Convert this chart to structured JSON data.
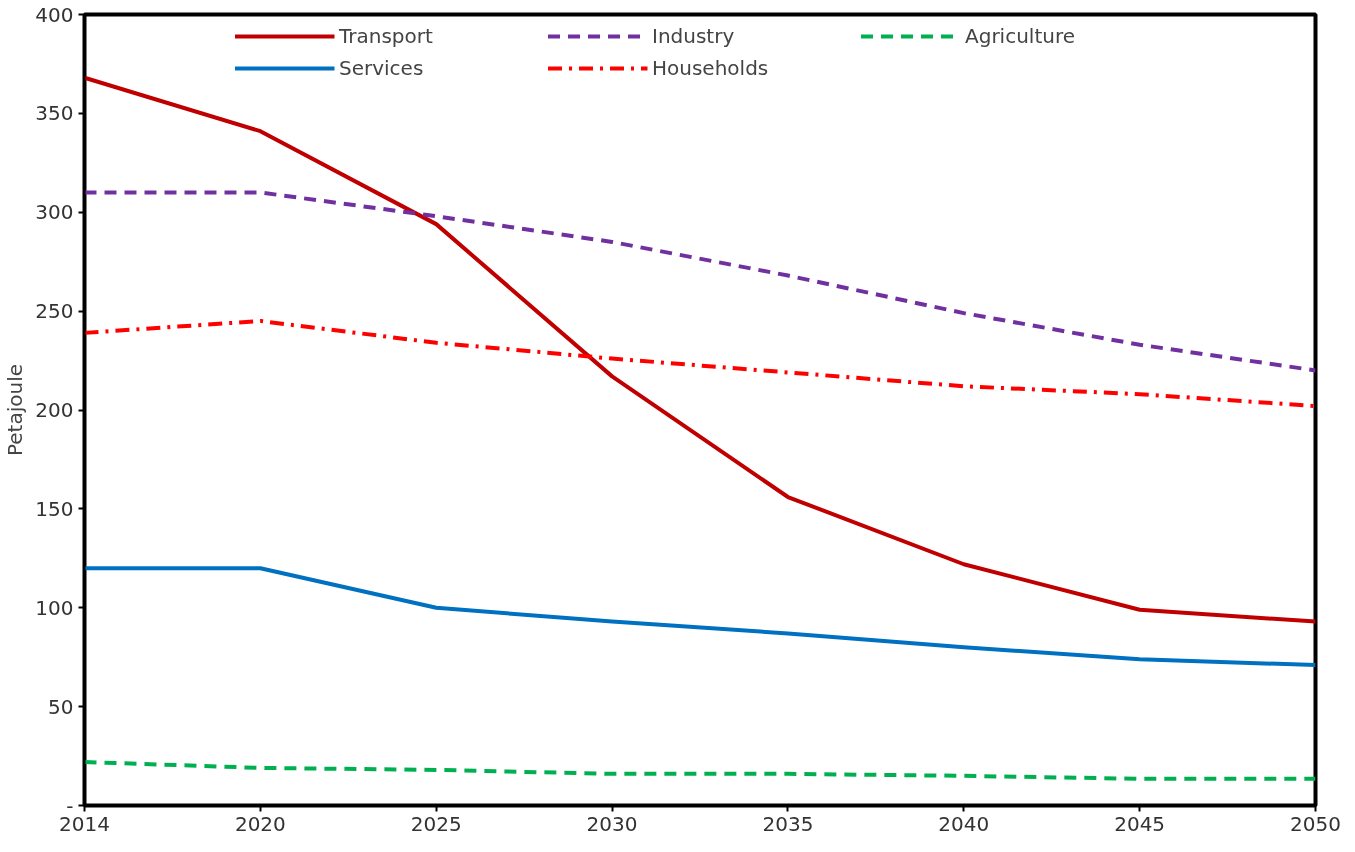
{
  "chart_data": {
    "type": "line",
    "ylabel": "Petajoule",
    "categories": [
      "2014",
      "2020",
      "2025",
      "2030",
      "2035",
      "2040",
      "2045",
      "2050"
    ],
    "ylim": [
      0,
      400
    ],
    "yticks": [
      {
        "value": 0,
        "label": "-"
      },
      50,
      100,
      150,
      200,
      250,
      300,
      350,
      400
    ],
    "grid": false,
    "legend": "top",
    "marker": "none",
    "series": [
      {
        "name": "Transport",
        "color": "#c00000",
        "line_style": "solid",
        "values": [
          368,
          341,
          294,
          217,
          156,
          122,
          99,
          93
        ]
      },
      {
        "name": "Industry",
        "color": "#7030a0",
        "line_style": "dashed",
        "values": [
          310,
          310,
          298,
          285,
          268,
          249,
          233,
          220
        ]
      },
      {
        "name": "Agriculture",
        "color": "#00b050",
        "line_style": "dashed",
        "values": [
          22,
          19,
          18,
          16,
          16,
          15,
          13.5,
          13.5
        ]
      },
      {
        "name": "Services",
        "color": "#0070c0",
        "line_style": "solid",
        "values": [
          120,
          120,
          100,
          93,
          87,
          80,
          74,
          71
        ]
      },
      {
        "name": "Households",
        "color": "#ff0000",
        "line_style": "dashdot",
        "values": [
          239,
          245,
          234,
          226,
          219,
          212,
          208,
          202
        ]
      }
    ]
  }
}
